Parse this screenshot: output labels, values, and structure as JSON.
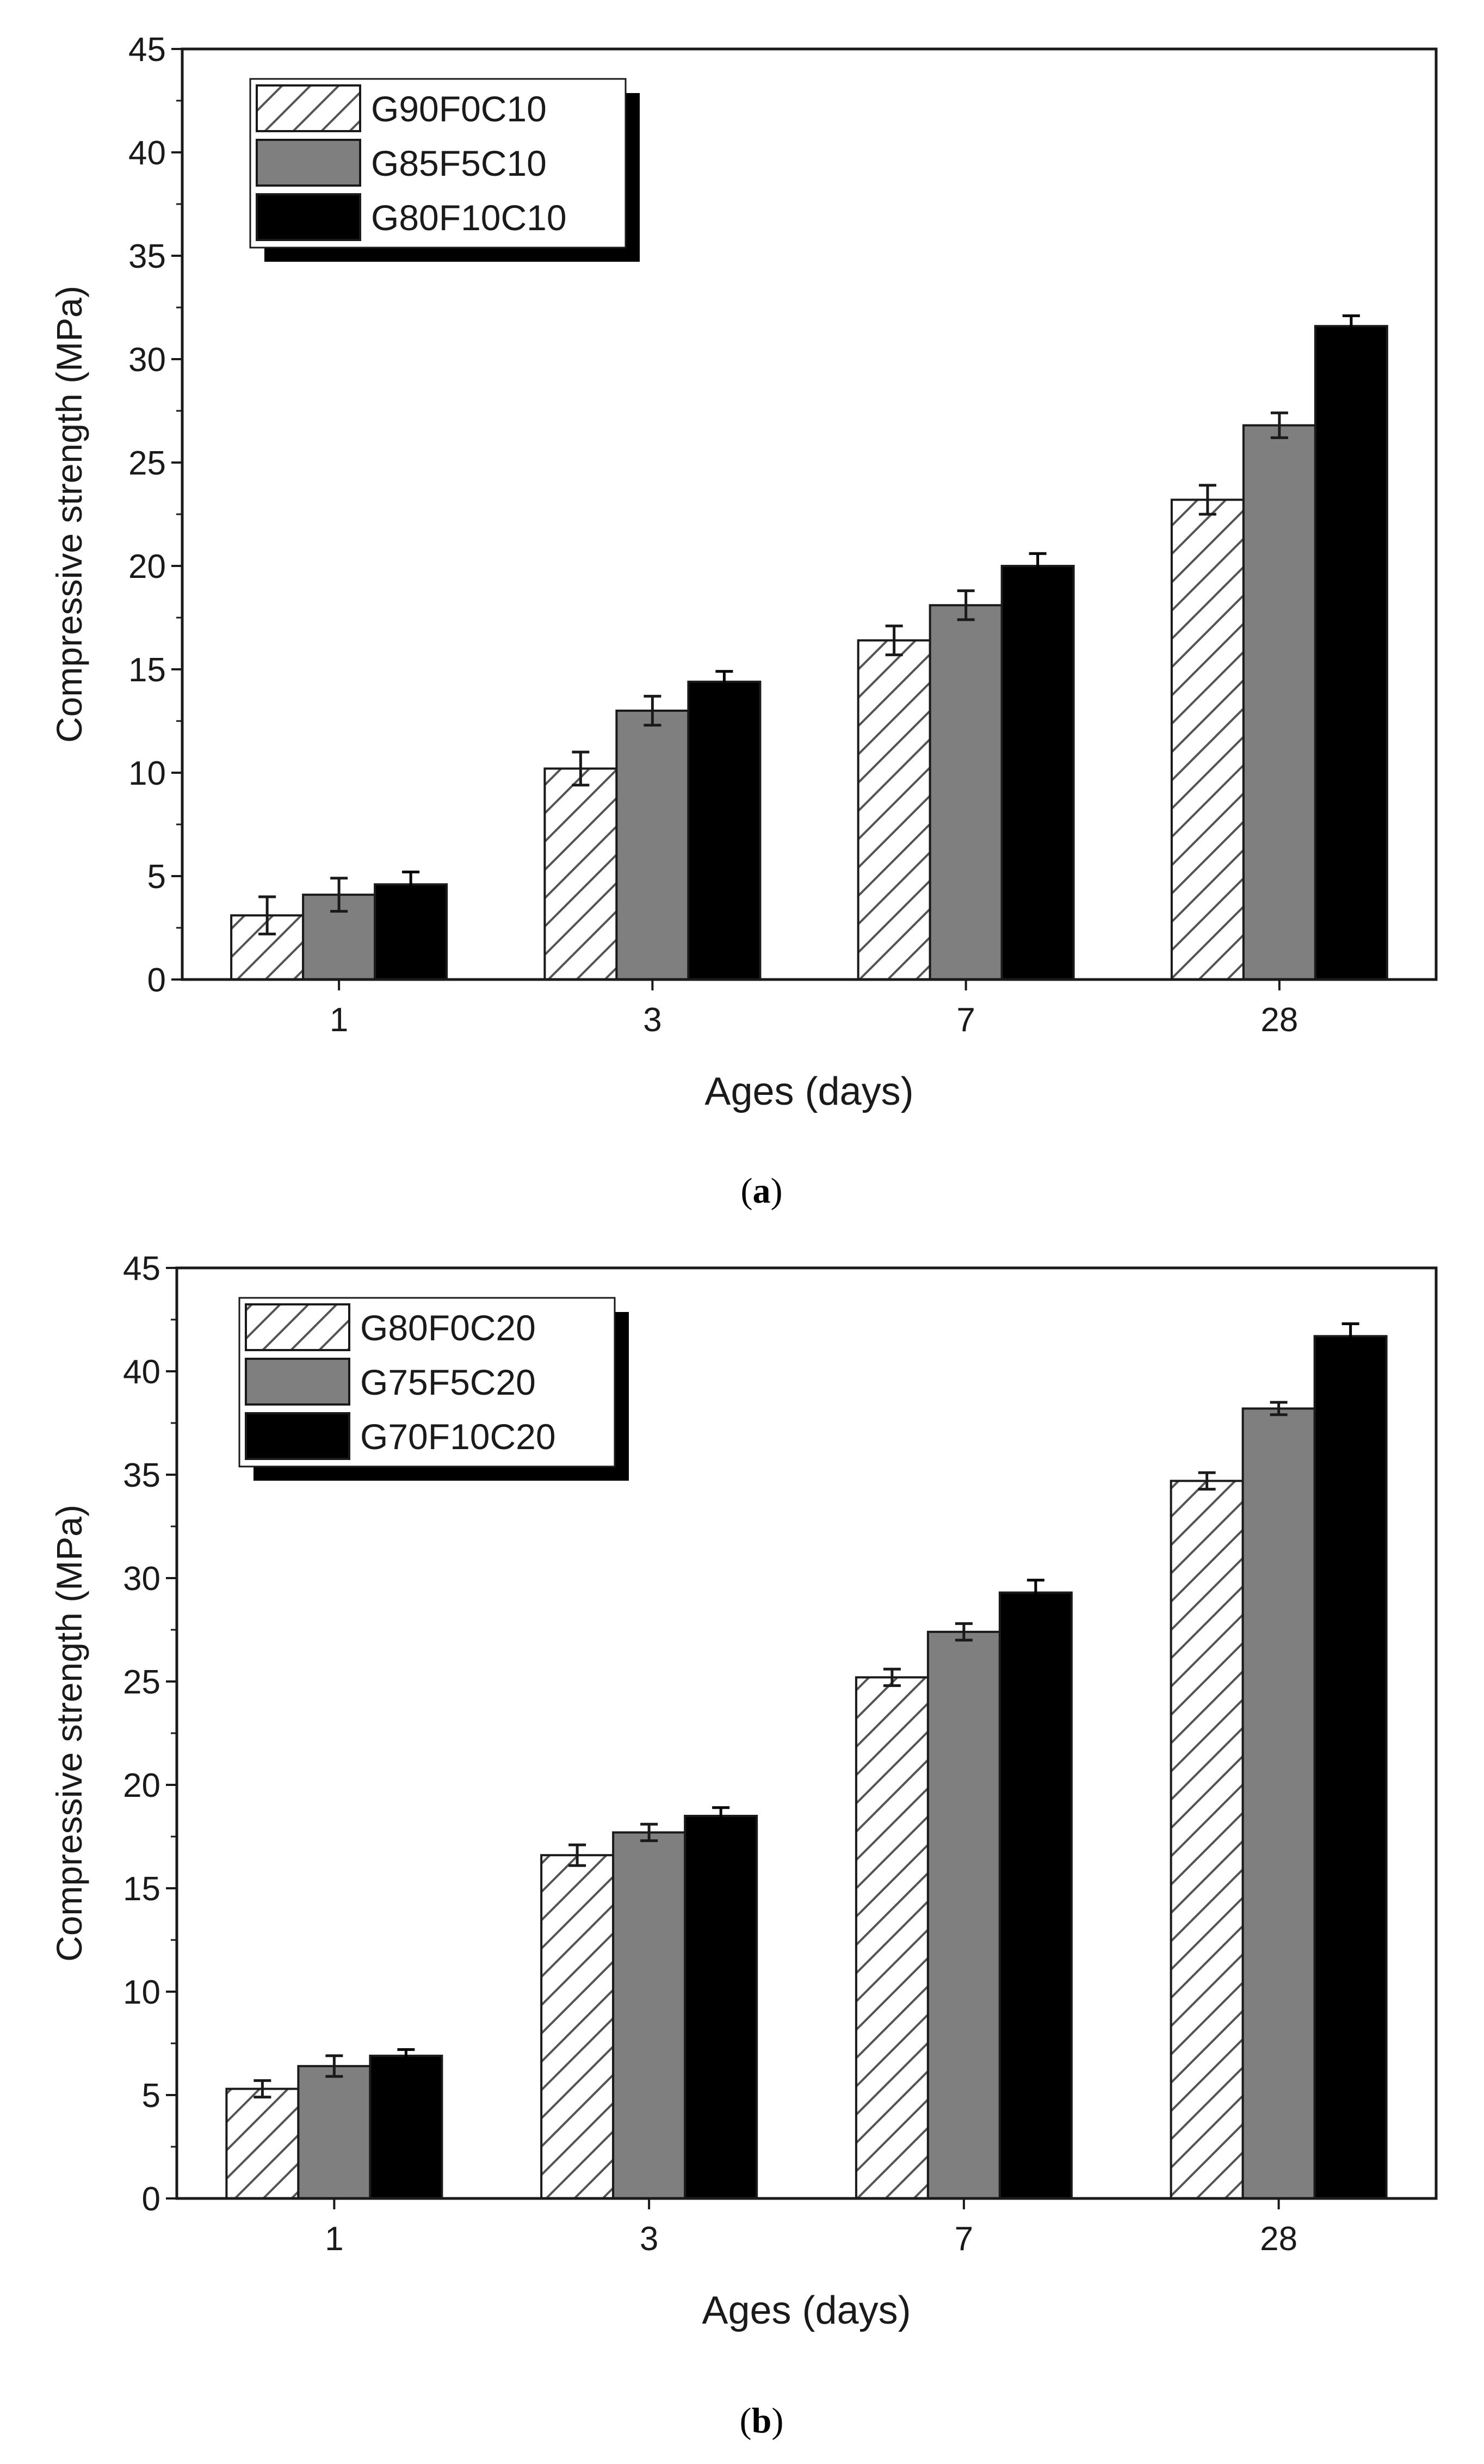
{
  "chart_data": [
    {
      "type": "bar",
      "panel": "a",
      "caption_letter": "a",
      "caption_open": "(",
      "caption_close": ")",
      "title": "",
      "xlabel": "Ages (days)",
      "ylabel": "Compressive strength (MPa)",
      "ylim": [
        0,
        45
      ],
      "yticks": [
        0,
        5,
        10,
        15,
        20,
        25,
        30,
        35,
        40,
        45
      ],
      "categories": [
        "1",
        "3",
        "7",
        "28"
      ],
      "legend_position": "top-left",
      "series": [
        {
          "name": "G90F0C10",
          "pattern": "hatch",
          "values": [
            3.1,
            10.2,
            16.4,
            23.2
          ],
          "errors": [
            0.9,
            0.8,
            0.7,
            0.7
          ]
        },
        {
          "name": "G85F5C10",
          "pattern": "gray",
          "values": [
            4.1,
            13.0,
            18.1,
            26.8
          ],
          "errors": [
            0.8,
            0.7,
            0.7,
            0.6
          ]
        },
        {
          "name": "G80F10C10",
          "pattern": "black",
          "values": [
            4.6,
            14.4,
            20.0,
            31.6
          ],
          "errors": [
            0.6,
            0.5,
            0.6,
            0.5
          ]
        }
      ]
    },
    {
      "type": "bar",
      "panel": "b",
      "caption_letter": "b",
      "caption_open": "(",
      "caption_close": ")",
      "title": "",
      "xlabel": "Ages (days)",
      "ylabel": "Compressive strength (MPa)",
      "ylim": [
        0,
        45
      ],
      "yticks": [
        0,
        5,
        10,
        15,
        20,
        25,
        30,
        35,
        40,
        45
      ],
      "categories": [
        "1",
        "3",
        "7",
        "28"
      ],
      "legend_position": "top-left",
      "series": [
        {
          "name": "G80F0C20",
          "pattern": "hatch",
          "values": [
            5.3,
            16.6,
            25.2,
            34.7
          ],
          "errors": [
            0.4,
            0.5,
            0.4,
            0.4
          ]
        },
        {
          "name": "G75F5C20",
          "pattern": "gray",
          "values": [
            6.4,
            17.7,
            27.4,
            38.2
          ],
          "errors": [
            0.5,
            0.4,
            0.4,
            0.3
          ]
        },
        {
          "name": "G70F10C20",
          "pattern": "black",
          "values": [
            6.9,
            18.5,
            29.3,
            41.7
          ],
          "errors": [
            0.3,
            0.4,
            0.6,
            0.6
          ]
        }
      ]
    }
  ],
  "colors": {
    "hatch_fill": "#ffffff",
    "hatch_line": "#555555",
    "gray": "#7f7f7f",
    "black": "#000000",
    "axis": "#1a1a1a"
  }
}
